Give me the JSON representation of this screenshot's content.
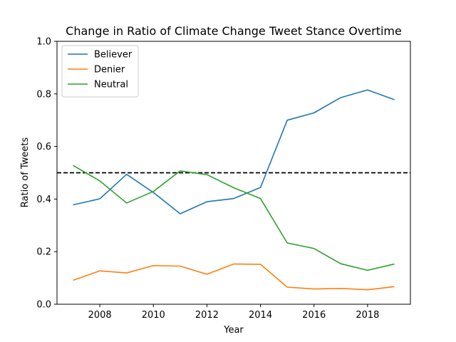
{
  "chart_data": {
    "type": "line",
    "title": "Change in Ratio of Climate Change Tweet Stance Overtime",
    "xlabel": "Year",
    "ylabel": "Ratio of Tweets",
    "x": [
      2007,
      2008,
      2009,
      2010,
      2011,
      2012,
      2013,
      2014,
      2015,
      2016,
      2017,
      2018,
      2019
    ],
    "xlim": [
      2006.4,
      2019.6
    ],
    "ylim": [
      0,
      1
    ],
    "xticks": [
      "2008",
      "2010",
      "2012",
      "2014",
      "2016",
      "2018"
    ],
    "yticks": [
      "0.0",
      "0.2",
      "0.4",
      "0.6",
      "0.8",
      "1.0"
    ],
    "series": [
      {
        "name": "Believer",
        "color": "#1f77b4",
        "values": [
          0.378,
          0.401,
          0.494,
          0.425,
          0.344,
          0.39,
          0.402,
          0.444,
          0.7,
          0.728,
          0.786,
          0.815,
          0.778
        ]
      },
      {
        "name": "Denier",
        "color": "#ff7f0e",
        "values": [
          0.091,
          0.127,
          0.119,
          0.147,
          0.145,
          0.114,
          0.153,
          0.152,
          0.065,
          0.058,
          0.06,
          0.055,
          0.067
        ]
      },
      {
        "name": "Neutral",
        "color": "#2ca02c",
        "values": [
          0.528,
          0.469,
          0.385,
          0.429,
          0.507,
          0.493,
          0.443,
          0.402,
          0.233,
          0.212,
          0.154,
          0.129,
          0.153
        ]
      }
    ],
    "reference_line": {
      "y": 0.5,
      "style": "dashed",
      "color": "#000000"
    },
    "grid": false,
    "legend": "top-left"
  }
}
